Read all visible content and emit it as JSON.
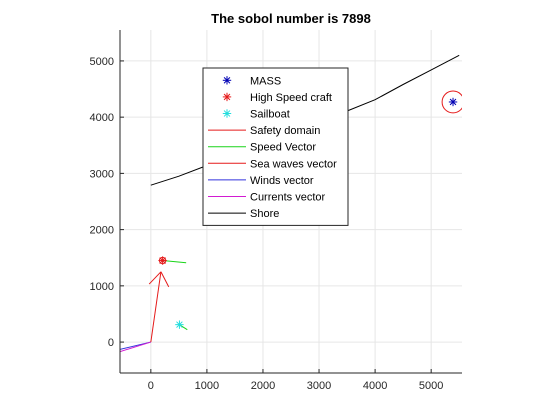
{
  "chart_data": {
    "type": "line",
    "title": "The sobol number is 7898",
    "xlabel": "",
    "ylabel": "",
    "xlim": [
      -550,
      5550
    ],
    "ylim": [
      -550,
      5550
    ],
    "xticks": [
      0,
      1000,
      2000,
      3000,
      4000,
      5000
    ],
    "yticks": [
      0,
      1000,
      2000,
      3000,
      4000,
      5000
    ],
    "xtick_labels": [
      "0",
      "1000",
      "2000",
      "3000",
      "4000",
      "5000"
    ],
    "ytick_labels": [
      "0",
      "1000",
      "2000",
      "3000",
      "4000",
      "5000"
    ],
    "grid": true,
    "legend_position": "top-center",
    "series": [
      {
        "name": "MASS",
        "kind": "marker",
        "marker": "asterisk",
        "color": "#0000b4",
        "points": [
          [
            5390,
            4270
          ]
        ]
      },
      {
        "name": "High Speed craft",
        "kind": "marker",
        "marker": "asterisk",
        "color": "#e51a1a",
        "points": [
          [
            210,
            1450
          ]
        ]
      },
      {
        "name": "Sailboat",
        "kind": "marker",
        "marker": "asterisk",
        "color": "#22dddd",
        "points": [
          [
            510,
            310
          ]
        ]
      },
      {
        "name": "Safety domain",
        "kind": "circle",
        "color": "#e51a1a",
        "center": [
          5390,
          4270
        ],
        "radius": 195
      },
      {
        "name": "Speed Vector",
        "kind": "segments",
        "color": "#1ad41a",
        "segments": [
          [
            [
              210,
              1450
            ],
            [
              630,
              1410
            ]
          ],
          [
            [
              510,
              310
            ],
            [
              650,
              220
            ]
          ]
        ]
      },
      {
        "name": "Sea waves vector",
        "kind": "arrow",
        "color": "#e51a1a",
        "from": [
          0,
          0
        ],
        "to": [
          180,
          1250
        ]
      },
      {
        "name": "Winds vector",
        "kind": "segments",
        "color": "#3333dd",
        "segments": [
          [
            [
              -550,
              -130
            ],
            [
              0,
              0
            ]
          ]
        ]
      },
      {
        "name": "Currents vector",
        "kind": "segments",
        "color": "#d21ad2",
        "segments": [
          [
            [
              -550,
              -170
            ],
            [
              0,
              0
            ]
          ]
        ]
      },
      {
        "name": "Shore",
        "kind": "line",
        "color": "#000000",
        "points": [
          [
            0,
            2790
          ],
          [
            500,
            2950
          ],
          [
            1000,
            3140
          ],
          [
            1500,
            3330
          ],
          [
            2000,
            3530
          ],
          [
            2500,
            3720
          ],
          [
            3000,
            3920
          ],
          [
            3500,
            4110
          ],
          [
            4000,
            4310
          ],
          [
            4500,
            4580
          ],
          [
            5000,
            4840
          ],
          [
            5500,
            5100
          ]
        ]
      }
    ]
  }
}
